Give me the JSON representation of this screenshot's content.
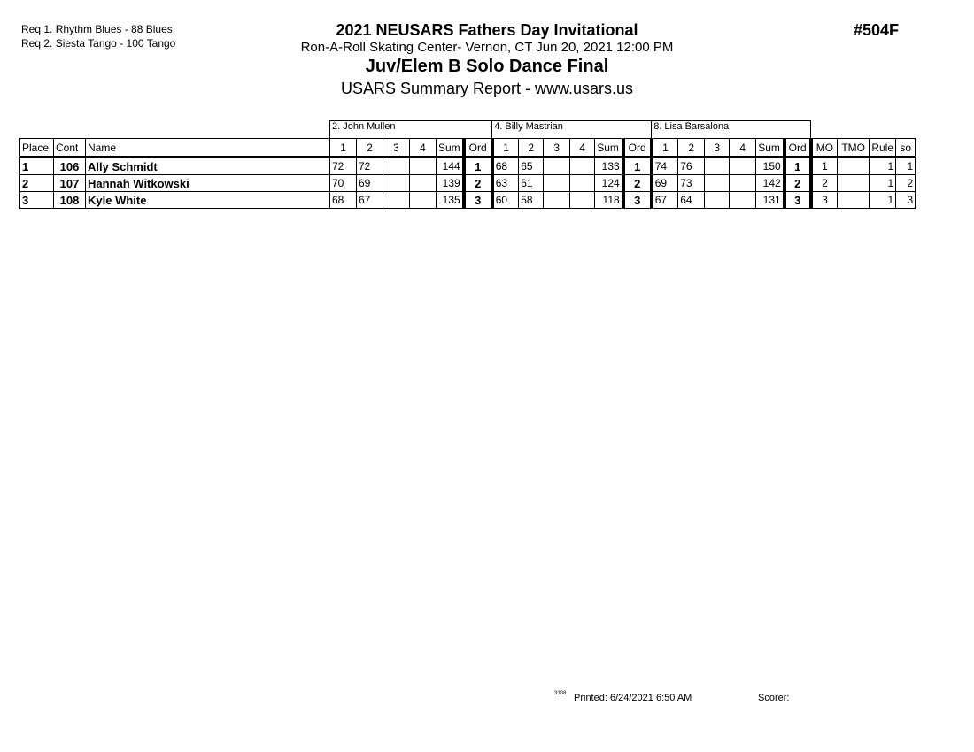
{
  "requirements": [
    "Req  1.  Rhythm Blues - 88 Blues",
    "Req  2.  Siesta Tango - 100 Tango"
  ],
  "title": "2021 NEUSARS Fathers Day Invitational",
  "venue_line": "Ron-A-Roll Skating Center- Vernon, CT  Jun 20, 2021  12:00 PM",
  "event": "Juv/Elem B Solo Dance Final",
  "report": "USARS Summary Report - www.usars.us",
  "event_number": "#504F",
  "judges": [
    "2.  John Mullen",
    "4.  Billy Mastrian",
    "8.  Lisa Barsalona"
  ],
  "headers": {
    "place": "Place",
    "cont": "Cont",
    "name": "Name",
    "marks": [
      "1",
      "2",
      "3",
      "4"
    ],
    "sum": "Sum",
    "ord": "Ord",
    "mo": "MO",
    "tmo": "TMO",
    "rule": "Rule",
    "so": "so"
  },
  "rows": [
    {
      "place": "1",
      "cont": "106",
      "name": "Ally Schmidt",
      "j": [
        {
          "m": [
            "72",
            "72",
            "",
            ""
          ],
          "sum": "144",
          "ord": "1"
        },
        {
          "m": [
            "68",
            "65",
            "",
            ""
          ],
          "sum": "133",
          "ord": "1"
        },
        {
          "m": [
            "74",
            "76",
            "",
            ""
          ],
          "sum": "150",
          "ord": "1"
        }
      ],
      "mo": "1",
      "tmo": "",
      "rule": "1",
      "so": "1"
    },
    {
      "place": "2",
      "cont": "107",
      "name": "Hannah Witkowski",
      "j": [
        {
          "m": [
            "70",
            "69",
            "",
            ""
          ],
          "sum": "139",
          "ord": "2"
        },
        {
          "m": [
            "63",
            "61",
            "",
            ""
          ],
          "sum": "124",
          "ord": "2"
        },
        {
          "m": [
            "69",
            "73",
            "",
            ""
          ],
          "sum": "142",
          "ord": "2"
        }
      ],
      "mo": "2",
      "tmo": "",
      "rule": "1",
      "so": "2"
    },
    {
      "place": "3",
      "cont": "108",
      "name": "Kyle White",
      "j": [
        {
          "m": [
            "68",
            "67",
            "",
            ""
          ],
          "sum": "135",
          "ord": "3"
        },
        {
          "m": [
            "60",
            "58",
            "",
            ""
          ],
          "sum": "118",
          "ord": "3"
        },
        {
          "m": [
            "67",
            "64",
            "",
            ""
          ],
          "sum": "131",
          "ord": "3"
        }
      ],
      "mo": "3",
      "tmo": "",
      "rule": "1",
      "so": "3"
    }
  ],
  "footer": {
    "code": "3308",
    "printed": "Printed:  6/24/2021  6:50 AM",
    "scorer": "Scorer:"
  }
}
